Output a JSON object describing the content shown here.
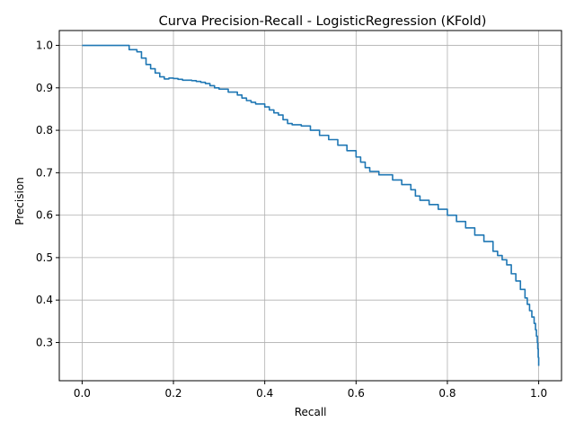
{
  "chart_data": {
    "type": "line",
    "title": "Curva Precision-Recall - LogisticRegression (KFold)",
    "xlabel": "Recall",
    "ylabel": "Precision",
    "xlim": [
      -0.05,
      1.05
    ],
    "ylim": [
      0.21,
      1.035
    ],
    "grid": true,
    "x_ticks": [
      0.0,
      0.2,
      0.4,
      0.6,
      0.8,
      1.0
    ],
    "x_tick_labels": [
      "0.0",
      "0.2",
      "0.4",
      "0.6",
      "0.8",
      "1.0"
    ],
    "y_ticks": [
      0.3,
      0.4,
      0.5,
      0.6,
      0.7,
      0.8,
      0.9,
      1.0
    ],
    "y_tick_labels": [
      "0.3",
      "0.4",
      "0.5",
      "0.6",
      "0.7",
      "0.8",
      "0.9",
      "1.0"
    ],
    "colors": {
      "line": "#1f77b4",
      "grid": "#b0b0b0",
      "axes": "#000000"
    },
    "series": [
      {
        "x": [
          0.0,
          0.02,
          0.04,
          0.06,
          0.08,
          0.1,
          0.103,
          0.105,
          0.12,
          0.13,
          0.14,
          0.15,
          0.16,
          0.17,
          0.18,
          0.19,
          0.2,
          0.21,
          0.22,
          0.24,
          0.25,
          0.26,
          0.27,
          0.28,
          0.29,
          0.3,
          0.32,
          0.34,
          0.35,
          0.36,
          0.37,
          0.38,
          0.4,
          0.41,
          0.42,
          0.43,
          0.44,
          0.45,
          0.46,
          0.48,
          0.5,
          0.52,
          0.54,
          0.56,
          0.58,
          0.6,
          0.61,
          0.62,
          0.63,
          0.65,
          0.68,
          0.7,
          0.72,
          0.73,
          0.74,
          0.76,
          0.78,
          0.8,
          0.82,
          0.84,
          0.86,
          0.88,
          0.9,
          0.91,
          0.92,
          0.93,
          0.94,
          0.95,
          0.96,
          0.97,
          0.975,
          0.98,
          0.985,
          0.99,
          0.993,
          0.995,
          0.997,
          0.998,
          0.999,
          1.0
        ],
        "y": [
          1.0,
          1.0,
          1.0,
          1.0,
          1.0,
          1.0,
          0.99,
          0.99,
          0.985,
          0.97,
          0.955,
          0.945,
          0.935,
          0.926,
          0.921,
          0.923,
          0.922,
          0.92,
          0.918,
          0.917,
          0.915,
          0.913,
          0.91,
          0.905,
          0.9,
          0.897,
          0.89,
          0.883,
          0.876,
          0.87,
          0.866,
          0.862,
          0.855,
          0.848,
          0.841,
          0.836,
          0.825,
          0.816,
          0.813,
          0.81,
          0.8,
          0.788,
          0.778,
          0.765,
          0.752,
          0.737,
          0.725,
          0.712,
          0.703,
          0.695,
          0.683,
          0.672,
          0.66,
          0.645,
          0.635,
          0.625,
          0.614,
          0.6,
          0.585,
          0.57,
          0.553,
          0.538,
          0.515,
          0.505,
          0.495,
          0.483,
          0.462,
          0.445,
          0.425,
          0.405,
          0.39,
          0.375,
          0.36,
          0.345,
          0.33,
          0.315,
          0.3,
          0.285,
          0.265,
          0.245
        ]
      }
    ]
  }
}
